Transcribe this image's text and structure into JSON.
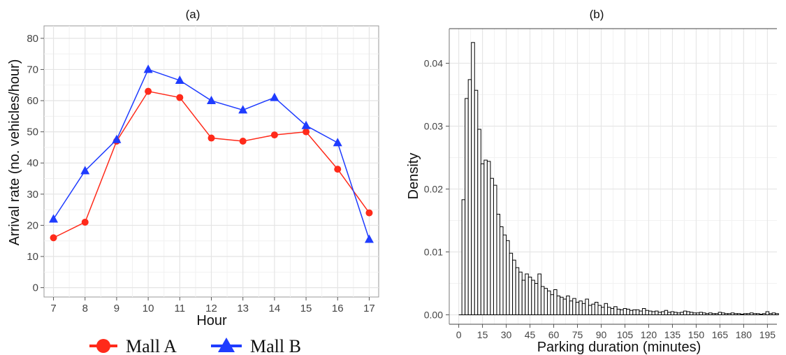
{
  "chart_data": [
    {
      "panel": "(a)",
      "type": "line",
      "title": "(a)",
      "xlabel": "Hour",
      "ylabel": "Arrival rate (no. vehicles/hour)",
      "x": [
        7,
        8,
        9,
        10,
        11,
        12,
        13,
        14,
        15,
        16,
        17
      ],
      "xlim": [
        6.7,
        17.3
      ],
      "ylim": [
        -3,
        84
      ],
      "yticks": [
        0,
        10,
        20,
        30,
        40,
        50,
        60,
        70,
        80
      ],
      "grid": true,
      "legend_position": "bottom",
      "series": [
        {
          "name": "Mall A",
          "color": "#ff2a1a",
          "marker": "circle",
          "values": [
            16,
            21,
            47,
            63,
            61,
            48,
            47,
            49,
            50,
            38,
            24
          ]
        },
        {
          "name": "Mall B",
          "color": "#1f3cff",
          "marker": "triangle",
          "values": [
            22,
            37.5,
            47.5,
            70,
            66.5,
            60,
            57,
            61,
            52,
            46.5,
            15.5
          ]
        }
      ]
    },
    {
      "panel": "(b)",
      "type": "bar",
      "title": "(b)",
      "xlabel": "Parking duration (minutes)",
      "ylabel": "Density",
      "bin_width": 2,
      "bin_start": 2,
      "xlim": [
        -6,
        201
      ],
      "xticks": [
        0,
        15,
        30,
        45,
        60,
        75,
        90,
        105,
        120,
        135,
        150,
        165,
        180,
        195
      ],
      "ylim": [
        -0.0015,
        0.0455
      ],
      "yticks": [
        0.0,
        0.01,
        0.02,
        0.03,
        0.04
      ],
      "ytick_labels": [
        "0.00",
        "0.01",
        "0.02",
        "0.03",
        "0.04"
      ],
      "grid": true,
      "values": [
        0.0183,
        0.0344,
        0.0374,
        0.0433,
        0.0357,
        0.0295,
        0.024,
        0.0246,
        0.0244,
        0.0217,
        0.0206,
        0.016,
        0.014,
        0.0127,
        0.0118,
        0.0098,
        0.0087,
        0.0075,
        0.0068,
        0.0055,
        0.0065,
        0.006,
        0.0055,
        0.005,
        0.0065,
        0.0045,
        0.0042,
        0.0038,
        0.0032,
        0.004,
        0.003,
        0.0028,
        0.0025,
        0.003,
        0.0022,
        0.0026,
        0.002,
        0.0022,
        0.0018,
        0.0025,
        0.0015,
        0.0017,
        0.002,
        0.0015,
        0.0012,
        0.0018,
        0.0012,
        0.001,
        0.0013,
        0.0009,
        0.0008,
        0.001,
        0.0009,
        0.0007,
        0.0008,
        0.0008,
        0.0006,
        0.001,
        0.0007,
        0.0006,
        0.0005,
        0.0006,
        0.0004,
        0.0005,
        0.0007,
        0.0004,
        0.0005,
        0.0004,
        0.0003,
        0.0004,
        0.0006,
        0.0005,
        0.0004,
        0.0003,
        0.0003,
        0.0004,
        0.0003,
        0.0002,
        0.0003,
        0.0002,
        0.0002,
        0.0004,
        0.0003,
        0.0002,
        0.0002,
        0.0003,
        0.0002,
        0.0002,
        0.0001,
        0.0002,
        0.0002,
        0.0003,
        0.0002,
        0.0002,
        0.0001,
        0.0002,
        0.0005,
        0.0002,
        0.0003,
        0.0002
      ]
    }
  ]
}
